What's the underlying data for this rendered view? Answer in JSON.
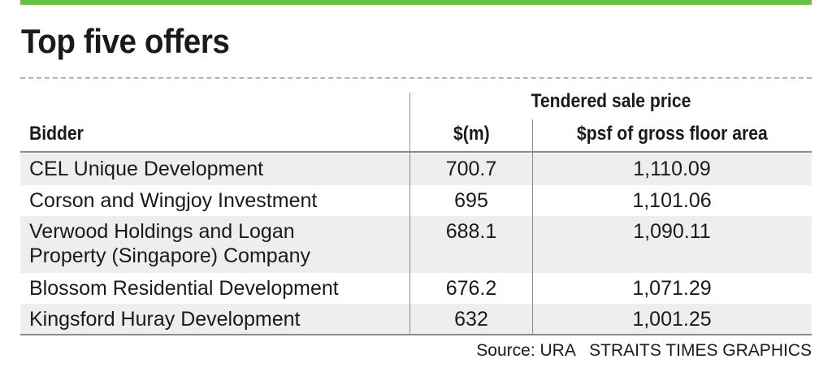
{
  "title": "Top five offers",
  "table": {
    "group_header": "Tendered sale price",
    "headers": {
      "bidder": "Bidder",
      "price_m": "$(m)",
      "psf": "$psf of gross floor area"
    },
    "rows": [
      {
        "bidder": "CEL Unique Development",
        "price_m": "700.7",
        "psf": "1,110.09"
      },
      {
        "bidder": "Corson and Wingjoy Investment",
        "price_m": "695",
        "psf": "1,101.06"
      },
      {
        "bidder": "Verwood Holdings and Logan Property (Singapore) Company",
        "price_m": "688.1",
        "psf": "1,090.11"
      },
      {
        "bidder": "Blossom Residential Development",
        "price_m": "676.2",
        "psf": "1,071.29"
      },
      {
        "bidder": "Kingsford Huray Development",
        "price_m": "632",
        "psf": "1,001.25"
      }
    ]
  },
  "source": "Source: URA   STRAITS TIMES GRAPHICS",
  "colors": {
    "accent_bar": "#6cc04a",
    "row_shade": "#eeeeee",
    "rule": "#8a8a8a"
  },
  "chart_data": {
    "type": "table",
    "title": "Top five offers",
    "columns": [
      "Bidder",
      "$(m)",
      "$psf of gross floor area"
    ],
    "column_group": "Tendered sale price",
    "rows": [
      [
        "CEL Unique Development",
        700.7,
        1110.09
      ],
      [
        "Corson and Wingjoy Investment",
        695,
        1101.06
      ],
      [
        "Verwood Holdings and Logan Property (Singapore) Company",
        688.1,
        1090.11
      ],
      [
        "Blossom Residential Development",
        676.2,
        1071.29
      ],
      [
        "Kingsford Huray Development",
        632,
        1001.25
      ]
    ]
  }
}
